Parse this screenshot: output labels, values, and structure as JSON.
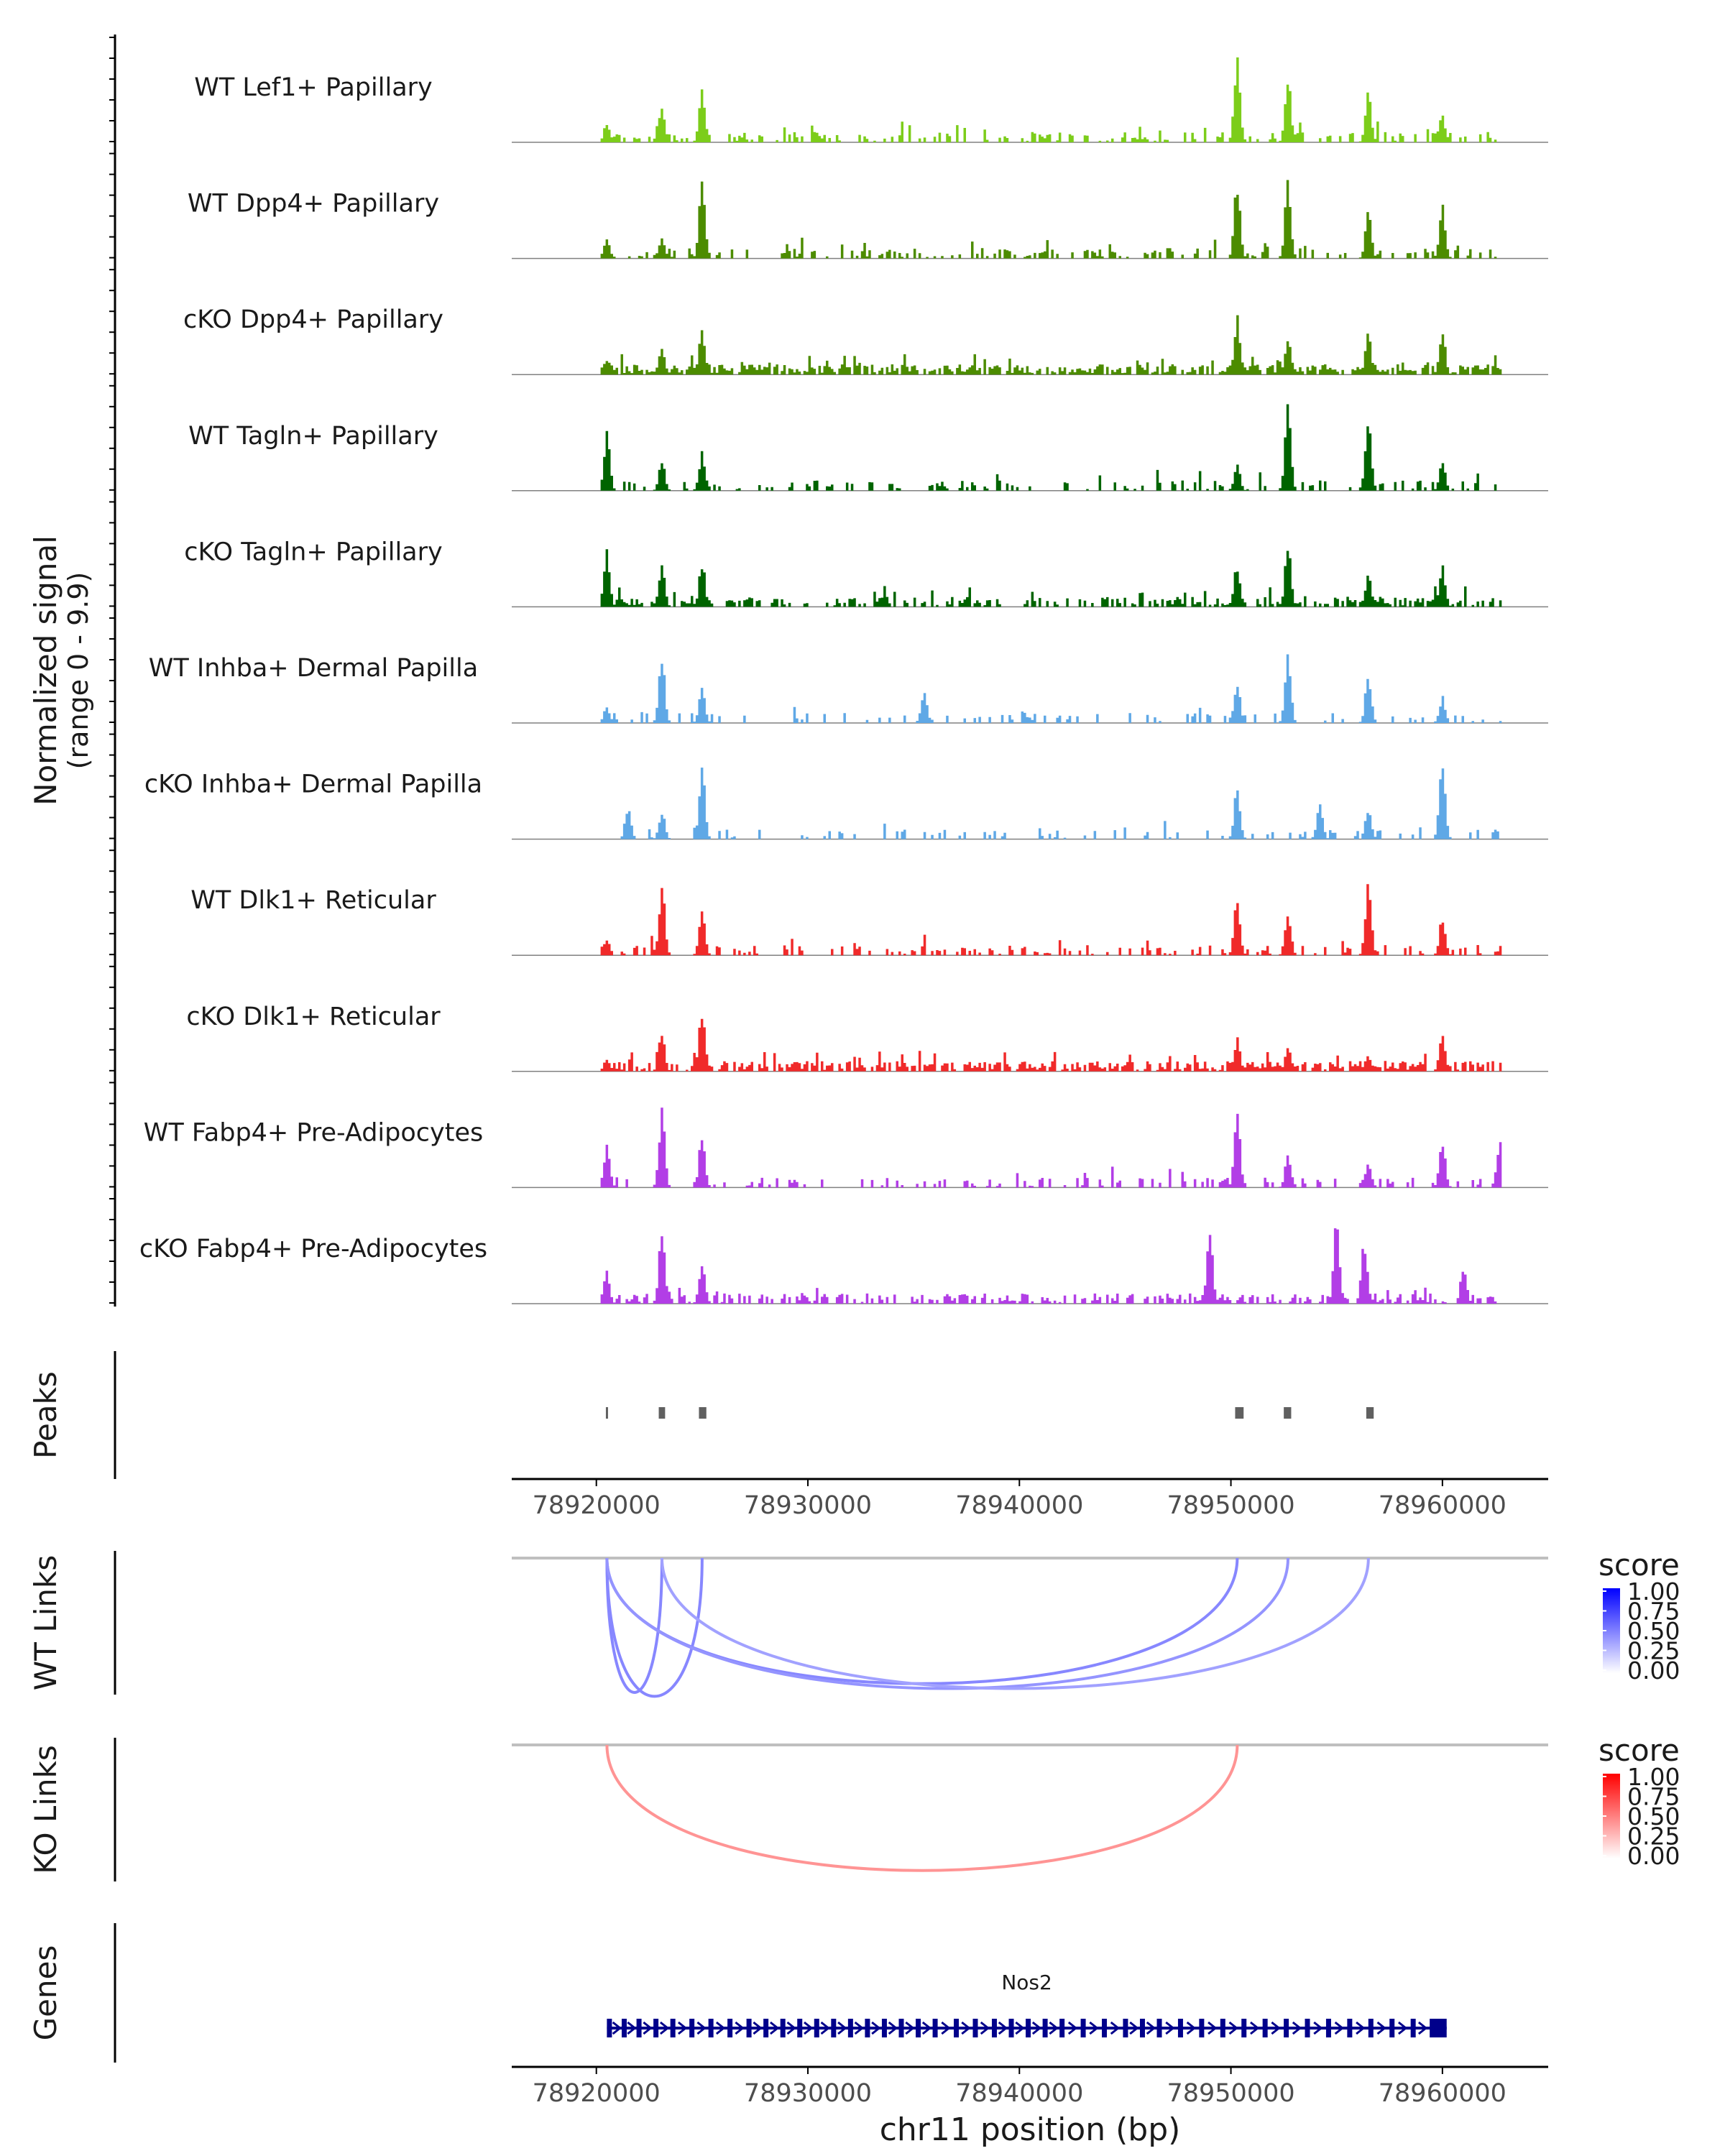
{
  "chart_data": {
    "type": "coverage-track",
    "region": "chr11:78916000-78965000",
    "xlabel": "chr11 position (bp)",
    "xlim": [
      78916000,
      78965000
    ],
    "xticks": [
      78920000,
      78930000,
      78940000,
      78950000,
      78960000
    ],
    "xtick_labels": [
      "78920000",
      "78930000",
      "78940000",
      "78950000",
      "78960000"
    ],
    "signal_ylabel": "Normalized signal",
    "signal_range_label": "(range 0 - 9.9)",
    "signal_range": [
      0,
      9.9
    ],
    "tracks": [
      {
        "name": "WT Lef1+ Papillary",
        "color": "#7ccd1a",
        "density": 0.45,
        "seed": 11,
        "peaks": [
          [
            78920500,
            0.22
          ],
          [
            78923100,
            0.42
          ],
          [
            78925000,
            0.6
          ],
          [
            78950300,
            1.0
          ],
          [
            78952700,
            0.68
          ],
          [
            78956500,
            0.55
          ],
          [
            78960000,
            0.3
          ]
        ]
      },
      {
        "name": "WT Dpp4+ Papillary",
        "color": "#4c8c00",
        "density": 0.35,
        "seed": 23,
        "peaks": [
          [
            78920500,
            0.2
          ],
          [
            78923100,
            0.25
          ],
          [
            78925000,
            0.82
          ],
          [
            78950300,
            0.82
          ],
          [
            78952700,
            0.88
          ],
          [
            78956500,
            0.5
          ],
          [
            78960000,
            0.58
          ]
        ]
      },
      {
        "name": "cKO Dpp4+ Papillary",
        "color": "#4c8c00",
        "density": 0.8,
        "seed": 37,
        "peaks": [
          [
            78920500,
            0.18
          ],
          [
            78923100,
            0.32
          ],
          [
            78925000,
            0.48
          ],
          [
            78950300,
            0.65
          ],
          [
            78952700,
            0.44
          ],
          [
            78956500,
            0.45
          ],
          [
            78960000,
            0.46
          ]
        ]
      },
      {
        "name": "WT Tagln+ Papillary",
        "color": "#006400",
        "density": 0.3,
        "seed": 41,
        "peaks": [
          [
            78920500,
            0.62
          ],
          [
            78923100,
            0.32
          ],
          [
            78925000,
            0.42
          ],
          [
            78950300,
            0.28
          ],
          [
            78952700,
            0.98
          ],
          [
            78956500,
            0.78
          ],
          [
            78960000,
            0.3
          ]
        ]
      },
      {
        "name": "cKO Tagln+ Papillary",
        "color": "#006400",
        "density": 0.55,
        "seed": 53,
        "peaks": [
          [
            78920500,
            0.65
          ],
          [
            78923100,
            0.48
          ],
          [
            78925000,
            0.5
          ],
          [
            78950300,
            0.48
          ],
          [
            78952700,
            0.7
          ],
          [
            78956500,
            0.36
          ],
          [
            78960000,
            0.45
          ]
        ]
      },
      {
        "name": "WT Inhba+ Dermal Papilla",
        "color": "#5fa8e6",
        "density": 0.25,
        "seed": 61,
        "peaks": [
          [
            78920500,
            0.18
          ],
          [
            78923100,
            0.7
          ],
          [
            78925000,
            0.42
          ],
          [
            78935500,
            0.36
          ],
          [
            78950300,
            0.45
          ],
          [
            78952700,
            0.72
          ],
          [
            78956500,
            0.55
          ],
          [
            78960000,
            0.28
          ]
        ]
      },
      {
        "name": "cKO Inhba+ Dermal Papilla",
        "color": "#5fa8e6",
        "density": 0.2,
        "seed": 71,
        "peaks": [
          [
            78921500,
            0.35
          ],
          [
            78923100,
            0.3
          ],
          [
            78925000,
            0.85
          ],
          [
            78950300,
            0.55
          ],
          [
            78954200,
            0.4
          ],
          [
            78956500,
            0.35
          ],
          [
            78960000,
            0.85
          ]
        ]
      },
      {
        "name": "WT Dlk1+ Reticular",
        "color": "#f02a2a",
        "density": 0.35,
        "seed": 83,
        "peaks": [
          [
            78920500,
            0.18
          ],
          [
            78923100,
            0.78
          ],
          [
            78925000,
            0.48
          ],
          [
            78950300,
            0.62
          ],
          [
            78952700,
            0.5
          ],
          [
            78956500,
            0.78
          ],
          [
            78960000,
            0.42
          ]
        ]
      },
      {
        "name": "cKO Dlk1+ Reticular",
        "color": "#f02a2a",
        "density": 0.75,
        "seed": 97,
        "peaks": [
          [
            78920500,
            0.15
          ],
          [
            78923100,
            0.45
          ],
          [
            78925000,
            0.68
          ],
          [
            78950300,
            0.38
          ],
          [
            78952700,
            0.3
          ],
          [
            78956500,
            0.16
          ],
          [
            78960000,
            0.44
          ]
        ]
      },
      {
        "name": "WT Fabp4+ Pre-Adipocytes",
        "color": "#b23ee6",
        "density": 0.35,
        "seed": 103,
        "peaks": [
          [
            78920500,
            0.5
          ],
          [
            78923100,
            0.82
          ],
          [
            78925000,
            0.6
          ],
          [
            78950300,
            0.82
          ],
          [
            78952700,
            0.36
          ],
          [
            78956500,
            0.3
          ],
          [
            78960000,
            0.5
          ],
          [
            78962700,
            0.5
          ]
        ]
      },
      {
        "name": "cKO Fabp4+ Pre-Adipocytes",
        "color": "#b23ee6",
        "density": 0.6,
        "seed": 117,
        "peaks": [
          [
            78920500,
            0.35
          ],
          [
            78923100,
            0.8
          ],
          [
            78925000,
            0.45
          ],
          [
            78949000,
            0.78
          ],
          [
            78955000,
            0.9
          ],
          [
            78956300,
            0.72
          ],
          [
            78961000,
            0.42
          ]
        ]
      }
    ],
    "peaks_track": {
      "label": "Peaks",
      "regions": [
        [
          78920450,
          78920550
        ],
        [
          78922950,
          78923250
        ],
        [
          78924850,
          78925200
        ],
        [
          78950200,
          78950600
        ],
        [
          78952500,
          78952850
        ],
        [
          78956400,
          78956750
        ]
      ]
    },
    "wt_links": {
      "label": "WT Links",
      "legend_title": "score",
      "legend_ticks": [
        "1.00",
        "0.75",
        "0.50",
        "0.25",
        "0.00"
      ],
      "color_high": "#0000ff",
      "links": [
        {
          "start": 78920500,
          "end": 78923100,
          "score": 0.35
        },
        {
          "start": 78920500,
          "end": 78925000,
          "score": 0.35
        },
        {
          "start": 78920500,
          "end": 78950300,
          "score": 0.35
        },
        {
          "start": 78920500,
          "end": 78952700,
          "score": 0.3
        },
        {
          "start": 78923100,
          "end": 78956500,
          "score": 0.25
        }
      ]
    },
    "ko_links": {
      "label": "KO Links",
      "legend_title": "score",
      "legend_ticks": [
        "1.00",
        "0.75",
        "0.50",
        "0.25",
        "0.00"
      ],
      "color_high": "#ff0000",
      "links": [
        {
          "start": 78920500,
          "end": 78950300,
          "score": 0.3
        }
      ]
    },
    "genes": {
      "label": "Genes",
      "gene_name": "Nos2",
      "gene_start": 78920500,
      "gene_end": 78960200,
      "strand": "+",
      "color": "#00008b",
      "exons": [
        78920600,
        78921300,
        78922000,
        78922800,
        78923600,
        78924500,
        78925400,
        78926300,
        78927200,
        78928000,
        78928800,
        78929600,
        78930400,
        78931200,
        78932000,
        78932800,
        78933600,
        78934400,
        78935200,
        78936000,
        78937000,
        78937900,
        78938800,
        78939600,
        78940400,
        78941200,
        78942000,
        78943000,
        78944000,
        78945000,
        78945800,
        78946600,
        78947600,
        78948600,
        78949600,
        78950600,
        78951600,
        78952600,
        78953600,
        78954600,
        78955600,
        78956600,
        78957600,
        78958600,
        78959500
      ]
    }
  }
}
